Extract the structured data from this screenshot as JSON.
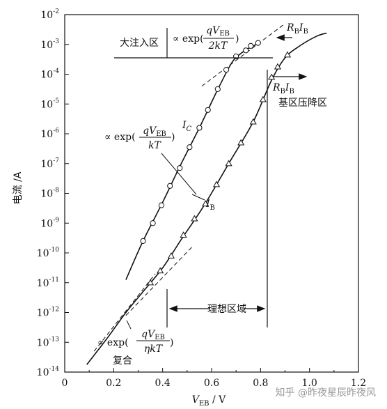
{
  "chart_data": {
    "type": "scatter",
    "title": "",
    "xlabel": "V_EB / V",
    "ylabel": "电流 /A",
    "xlim": [
      0,
      1.2
    ],
    "ylim_exp": [
      -14,
      -2
    ],
    "y_scale": "log",
    "grid": false,
    "x_ticks": [
      "0",
      "0.2",
      "0.4",
      "0.6",
      "0.8",
      "1.0",
      "1.2"
    ],
    "y_ticks": [
      {
        "base": "10",
        "exp": "-2"
      },
      {
        "base": "10",
        "exp": "-3"
      },
      {
        "base": "10",
        "exp": "-4"
      },
      {
        "base": "10",
        "exp": "-5"
      },
      {
        "base": "10",
        "exp": "-6"
      },
      {
        "base": "10",
        "exp": "-7"
      },
      {
        "base": "10",
        "exp": "-8"
      },
      {
        "base": "10",
        "exp": "-9"
      },
      {
        "base": "10",
        "exp": "-10"
      },
      {
        "base": "10",
        "exp": "-11"
      },
      {
        "base": "10",
        "exp": "-12"
      },
      {
        "base": "10",
        "exp": "-13"
      },
      {
        "base": "10",
        "exp": "-14"
      }
    ],
    "series": [
      {
        "name": "I_C",
        "marker": "circle",
        "points": [
          [
            0.32,
            -9.6
          ],
          [
            0.36,
            -9.0
          ],
          [
            0.395,
            -8.4
          ],
          [
            0.43,
            -7.75
          ],
          [
            0.47,
            -7.15
          ],
          [
            0.51,
            -6.45
          ],
          [
            0.55,
            -5.8
          ],
          [
            0.585,
            -5.2
          ],
          [
            0.625,
            -4.5
          ],
          [
            0.66,
            -3.85
          ],
          [
            0.7,
            -3.4
          ],
          [
            0.74,
            -3.2
          ],
          [
            0.76,
            -3.05
          ],
          [
            0.79,
            -2.95
          ]
        ],
        "curve": [
          [
            0.25,
            -10.9
          ],
          [
            0.32,
            -9.6
          ],
          [
            0.4,
            -8.3
          ],
          [
            0.47,
            -7.1
          ],
          [
            0.55,
            -5.8
          ],
          [
            0.62,
            -4.6
          ],
          [
            0.68,
            -3.65
          ],
          [
            0.72,
            -3.3
          ],
          [
            0.77,
            -3.05
          ],
          [
            0.8,
            -2.95
          ]
        ]
      },
      {
        "name": "I_B",
        "marker": "triangle",
        "points": [
          [
            0.35,
            -11.0
          ],
          [
            0.39,
            -10.6
          ],
          [
            0.435,
            -10.1
          ],
          [
            0.485,
            -9.4
          ],
          [
            0.53,
            -8.85
          ],
          [
            0.575,
            -8.35
          ],
          [
            0.62,
            -7.7
          ],
          [
            0.67,
            -7.0
          ],
          [
            0.72,
            -6.3
          ],
          [
            0.77,
            -5.6
          ],
          [
            0.81,
            -4.85
          ],
          [
            0.845,
            -4.1
          ],
          [
            0.87,
            -3.75
          ],
          [
            0.91,
            -3.35
          ]
        ],
        "curve": [
          [
            0.09,
            -13.75
          ],
          [
            0.17,
            -12.9
          ],
          [
            0.25,
            -12.0
          ],
          [
            0.32,
            -11.3
          ],
          [
            0.4,
            -10.5
          ],
          [
            0.48,
            -9.5
          ],
          [
            0.57,
            -8.4
          ],
          [
            0.67,
            -7.0
          ],
          [
            0.77,
            -5.6
          ],
          [
            0.845,
            -4.2
          ],
          [
            0.9,
            -3.45
          ],
          [
            0.96,
            -3.05
          ],
          [
            1.03,
            -2.72
          ],
          [
            1.07,
            -2.62
          ]
        ]
      }
    ],
    "asymptotes": [
      {
        "name": "ideal-base",
        "points": [
          [
            0.25,
            -12.1
          ],
          [
            0.52,
            -9.8
          ]
        ]
      },
      {
        "name": "recombination",
        "points": [
          [
            0.12,
            -13.3
          ],
          [
            0.37,
            -10.7
          ]
        ]
      },
      {
        "name": "high-injection-collector",
        "points": [
          [
            0.56,
            -4.4
          ],
          [
            0.9,
            -2.3
          ]
        ]
      }
    ],
    "annotations": {
      "high_injection": "大注入区",
      "high_injection_formula": "∝ exp(qV_EB / 2kT)",
      "rbib_top": "R_B I_B",
      "rbib_mid": "R_B I_B",
      "base_drop": "基区压降区",
      "ic_label": "I_C",
      "ib_label": "I_B",
      "exp_kt": "∝ exp(qV_EB / kT)",
      "ideal_region": "理想区域",
      "recomb_formula": "∝ exp(qV_EB / ηkT)",
      "recombination": "复合"
    },
    "watermark": "知乎 @昨夜星辰昨夜风"
  }
}
